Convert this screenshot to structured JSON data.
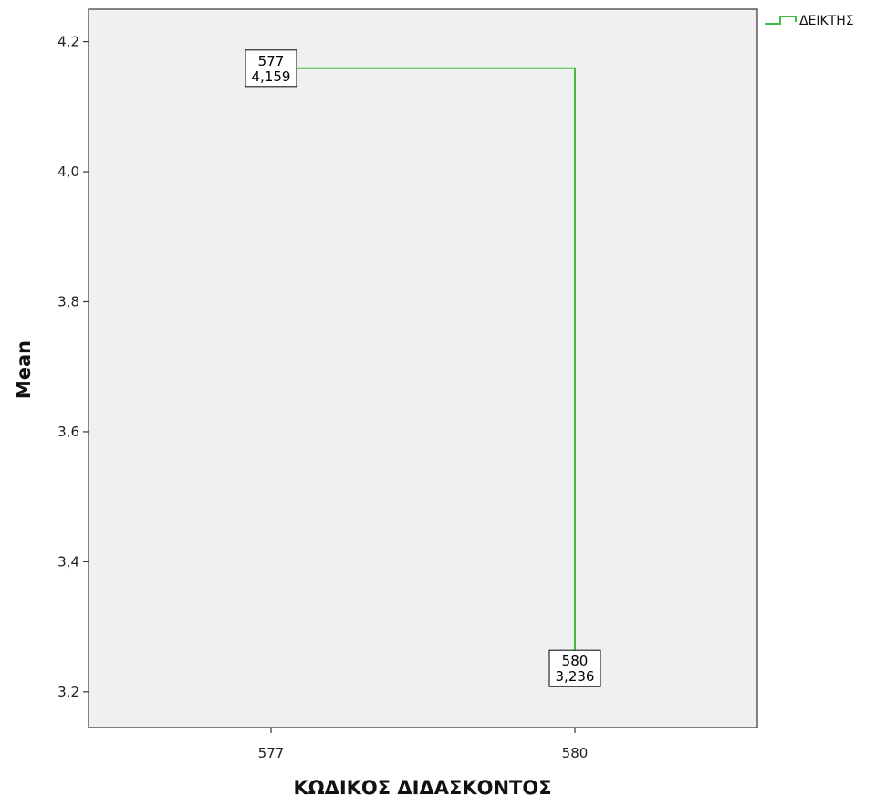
{
  "chart_data": {
    "type": "line",
    "interpolation": "step",
    "categories": [
      "577",
      "580"
    ],
    "series": [
      {
        "name": "ΔΕΙΚΤΗΣ",
        "color": "#44bb44",
        "values": [
          4.159,
          3.236
        ]
      }
    ],
    "point_labels": [
      {
        "category": "577",
        "value": "4,159"
      },
      {
        "category": "580",
        "value": "3,236"
      }
    ],
    "xlabel": "ΚΩΔΙΚΟΣ ΔΙΔΑΣΚΟΝΤΟΣ",
    "ylabel": "Mean",
    "ylim": [
      3.145,
      4.25
    ],
    "yticks": [
      {
        "value": 3.2,
        "label": "3,2"
      },
      {
        "value": 3.4,
        "label": "3,4"
      },
      {
        "value": 3.6,
        "label": "3,6"
      },
      {
        "value": 3.8,
        "label": "3,8"
      },
      {
        "value": 4.0,
        "label": "4,0"
      },
      {
        "value": 4.2,
        "label": "4,2"
      }
    ],
    "grid": false,
    "legend_position": "top-right",
    "plot_background": "#f0f0f0"
  }
}
